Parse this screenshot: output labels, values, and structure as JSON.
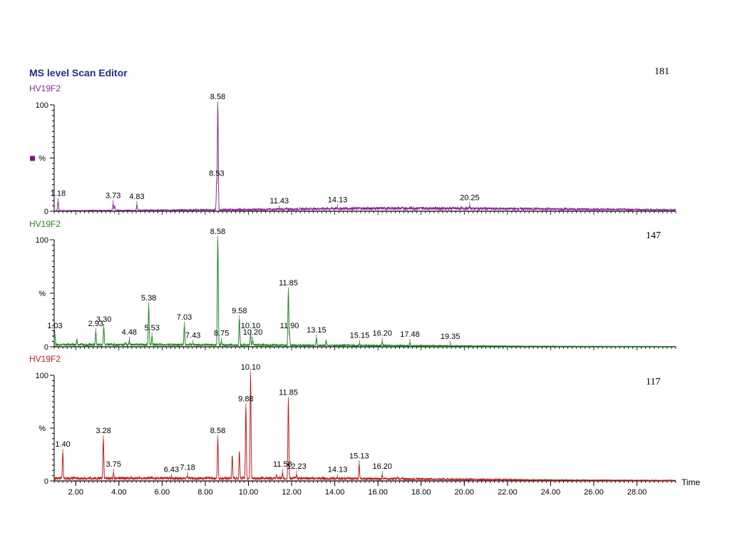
{
  "app_title": "MS level Scan Editor",
  "legend_marker_color": "#7b1a7b",
  "chart_data": [
    {
      "type": "line",
      "sample": "HV19F2",
      "mass_label": "181",
      "color": "#8a2a96",
      "y_axis_label": "%",
      "y_ticks": [
        "100",
        "0"
      ],
      "ylim": [
        0,
        100
      ],
      "xlim": [
        1.0,
        29.8
      ],
      "grid": false,
      "peaks": [
        {
          "x": 1.18,
          "y": 9
        },
        {
          "x": 3.73,
          "y": 7
        },
        {
          "x": 3.8,
          "y": 5
        },
        {
          "x": 4.83,
          "y": 6
        },
        {
          "x": 8.53,
          "y": 28
        },
        {
          "x": 8.58,
          "y": 100
        },
        {
          "x": 11.43,
          "y": 2
        },
        {
          "x": 14.13,
          "y": 3
        },
        {
          "x": 20.25,
          "y": 5
        }
      ],
      "baseline": [
        {
          "x": 1.0,
          "y": 0.5
        },
        {
          "x": 6.0,
          "y": 1
        },
        {
          "x": 10.0,
          "y": 1.5
        },
        {
          "x": 14.0,
          "y": 2.5
        },
        {
          "x": 18.0,
          "y": 2.8
        },
        {
          "x": 22.0,
          "y": 2.3
        },
        {
          "x": 26.0,
          "y": 1.8
        },
        {
          "x": 29.8,
          "y": 1.2
        }
      ],
      "peak_labels": [
        {
          "x": 1.18,
          "y": 9,
          "text": "1.18"
        },
        {
          "x": 3.73,
          "y": 7,
          "text": "3.73"
        },
        {
          "x": 4.83,
          "y": 6,
          "text": "4.83"
        },
        {
          "x": 8.53,
          "y": 28,
          "text": "8.53"
        },
        {
          "x": 8.58,
          "y": 100,
          "text": "8.58"
        },
        {
          "x": 11.43,
          "y": 2,
          "text": "11.43"
        },
        {
          "x": 14.13,
          "y": 3,
          "text": "14.13"
        },
        {
          "x": 20.25,
          "y": 5,
          "text": "20.25"
        }
      ]
    },
    {
      "type": "line",
      "sample": "HV19F2",
      "mass_label": "147",
      "color": "#1e8a1e",
      "y_axis_label": "%",
      "y_ticks": [
        "100",
        "0"
      ],
      "ylim": [
        0,
        100
      ],
      "xlim": [
        1.0,
        29.8
      ],
      "grid": false,
      "peaks": [
        {
          "x": 1.03,
          "y": 12
        },
        {
          "x": 2.05,
          "y": 7
        },
        {
          "x": 2.93,
          "y": 14
        },
        {
          "x": 3.3,
          "y": 18
        },
        {
          "x": 4.48,
          "y": 6
        },
        {
          "x": 4.3,
          "y": 4
        },
        {
          "x": 5.38,
          "y": 38
        },
        {
          "x": 5.53,
          "y": 10
        },
        {
          "x": 7.03,
          "y": 20
        },
        {
          "x": 7.43,
          "y": 3
        },
        {
          "x": 8.58,
          "y": 100
        },
        {
          "x": 8.75,
          "y": 5
        },
        {
          "x": 9.58,
          "y": 26
        },
        {
          "x": 10.1,
          "y": 12
        },
        {
          "x": 10.2,
          "y": 6
        },
        {
          "x": 11.85,
          "y": 52
        },
        {
          "x": 11.9,
          "y": 12
        },
        {
          "x": 13.15,
          "y": 8
        },
        {
          "x": 13.6,
          "y": 6
        },
        {
          "x": 15.15,
          "y": 3
        },
        {
          "x": 16.2,
          "y": 5
        },
        {
          "x": 17.48,
          "y": 4
        },
        {
          "x": 19.35,
          "y": 2
        }
      ],
      "baseline": [
        {
          "x": 1.0,
          "y": 2
        },
        {
          "x": 6.0,
          "y": 2
        },
        {
          "x": 12.0,
          "y": 1.5
        },
        {
          "x": 18.0,
          "y": 1
        },
        {
          "x": 23.0,
          "y": 0.5
        },
        {
          "x": 29.8,
          "y": 0.3
        }
      ],
      "peak_labels": [
        {
          "x": 1.03,
          "y": 12,
          "text": "1.03"
        },
        {
          "x": 2.93,
          "y": 14,
          "text": "2.93"
        },
        {
          "x": 3.3,
          "y": 18,
          "text": "3.30"
        },
        {
          "x": 4.48,
          "y": 6,
          "text": "4.48"
        },
        {
          "x": 5.38,
          "y": 38,
          "text": "5.38"
        },
        {
          "x": 5.53,
          "y": 10,
          "text": "5.53"
        },
        {
          "x": 7.03,
          "y": 20,
          "text": "7.03"
        },
        {
          "x": 7.43,
          "y": 3,
          "text": "7.43"
        },
        {
          "x": 8.58,
          "y": 100,
          "text": "8.58"
        },
        {
          "x": 8.75,
          "y": 5,
          "text": "8.75"
        },
        {
          "x": 9.58,
          "y": 26,
          "text": "9.58"
        },
        {
          "x": 10.1,
          "y": 12,
          "text": "10.10"
        },
        {
          "x": 10.2,
          "y": 6,
          "text": "10.20"
        },
        {
          "x": 11.85,
          "y": 52,
          "text": "11.85"
        },
        {
          "x": 11.9,
          "y": 12,
          "text": "11.90"
        },
        {
          "x": 13.15,
          "y": 8,
          "text": "13.15"
        },
        {
          "x": 15.15,
          "y": 3,
          "text": "15.15"
        },
        {
          "x": 16.2,
          "y": 5,
          "text": "16.20"
        },
        {
          "x": 17.48,
          "y": 4,
          "text": "17.48"
        },
        {
          "x": 19.35,
          "y": 2,
          "text": "19.35"
        }
      ]
    },
    {
      "type": "line",
      "sample": "HV19F2",
      "mass_label": "117",
      "color": "#c0201e",
      "y_axis_label": "%",
      "y_ticks": [
        "100",
        "0"
      ],
      "ylim": [
        0,
        100
      ],
      "xlim": [
        1.0,
        29.8
      ],
      "grid": false,
      "x_axis_label": "Time",
      "x_ticks": [
        2,
        4,
        6,
        8,
        10,
        12,
        14,
        16,
        18,
        20,
        22,
        24,
        26,
        28
      ],
      "x_tick_labels": [
        "2.00",
        "4.00",
        "6.00",
        "8.00",
        "10.00",
        "12.00",
        "14.00",
        "16.00",
        "18.00",
        "20.00",
        "22.00",
        "24.00",
        "26.00",
        "28.00"
      ],
      "peaks": [
        {
          "x": 1.4,
          "y": 27
        },
        {
          "x": 3.28,
          "y": 40
        },
        {
          "x": 3.75,
          "y": 8
        },
        {
          "x": 4.8,
          "y": 3
        },
        {
          "x": 6.43,
          "y": 3
        },
        {
          "x": 7.18,
          "y": 5
        },
        {
          "x": 8.58,
          "y": 40
        },
        {
          "x": 9.25,
          "y": 24
        },
        {
          "x": 9.58,
          "y": 28
        },
        {
          "x": 9.88,
          "y": 70
        },
        {
          "x": 10.1,
          "y": 100
        },
        {
          "x": 11.3,
          "y": 6
        },
        {
          "x": 11.58,
          "y": 8
        },
        {
          "x": 11.85,
          "y": 76
        },
        {
          "x": 12.23,
          "y": 6
        },
        {
          "x": 12.6,
          "y": 3
        },
        {
          "x": 14.13,
          "y": 3
        },
        {
          "x": 15.13,
          "y": 16
        },
        {
          "x": 16.2,
          "y": 6
        },
        {
          "x": 16.9,
          "y": 4
        },
        {
          "x": 18.0,
          "y": 2
        }
      ],
      "baseline": [
        {
          "x": 1.0,
          "y": 2.5
        },
        {
          "x": 6.0,
          "y": 2.5
        },
        {
          "x": 12.0,
          "y": 2.5
        },
        {
          "x": 18.0,
          "y": 1.8
        },
        {
          "x": 24.0,
          "y": 0.8
        },
        {
          "x": 29.8,
          "y": 0.5
        }
      ],
      "peak_labels": [
        {
          "x": 1.4,
          "y": 27,
          "text": "1.40"
        },
        {
          "x": 3.28,
          "y": 40,
          "text": "3.28"
        },
        {
          "x": 3.75,
          "y": 8,
          "text": "3.75"
        },
        {
          "x": 6.43,
          "y": 3,
          "text": "6.43"
        },
        {
          "x": 7.18,
          "y": 5,
          "text": "7.18"
        },
        {
          "x": 8.58,
          "y": 40,
          "text": "8.58"
        },
        {
          "x": 9.88,
          "y": 70,
          "text": "9.88"
        },
        {
          "x": 10.1,
          "y": 100,
          "text": "10.10"
        },
        {
          "x": 11.58,
          "y": 8,
          "text": "11.58"
        },
        {
          "x": 11.85,
          "y": 76,
          "text": "11.85"
        },
        {
          "x": 12.23,
          "y": 6,
          "text": "12.23"
        },
        {
          "x": 14.13,
          "y": 3,
          "text": "14.13"
        },
        {
          "x": 15.13,
          "y": 16,
          "text": "15.13"
        },
        {
          "x": 16.2,
          "y": 6,
          "text": "16.20"
        }
      ]
    }
  ]
}
